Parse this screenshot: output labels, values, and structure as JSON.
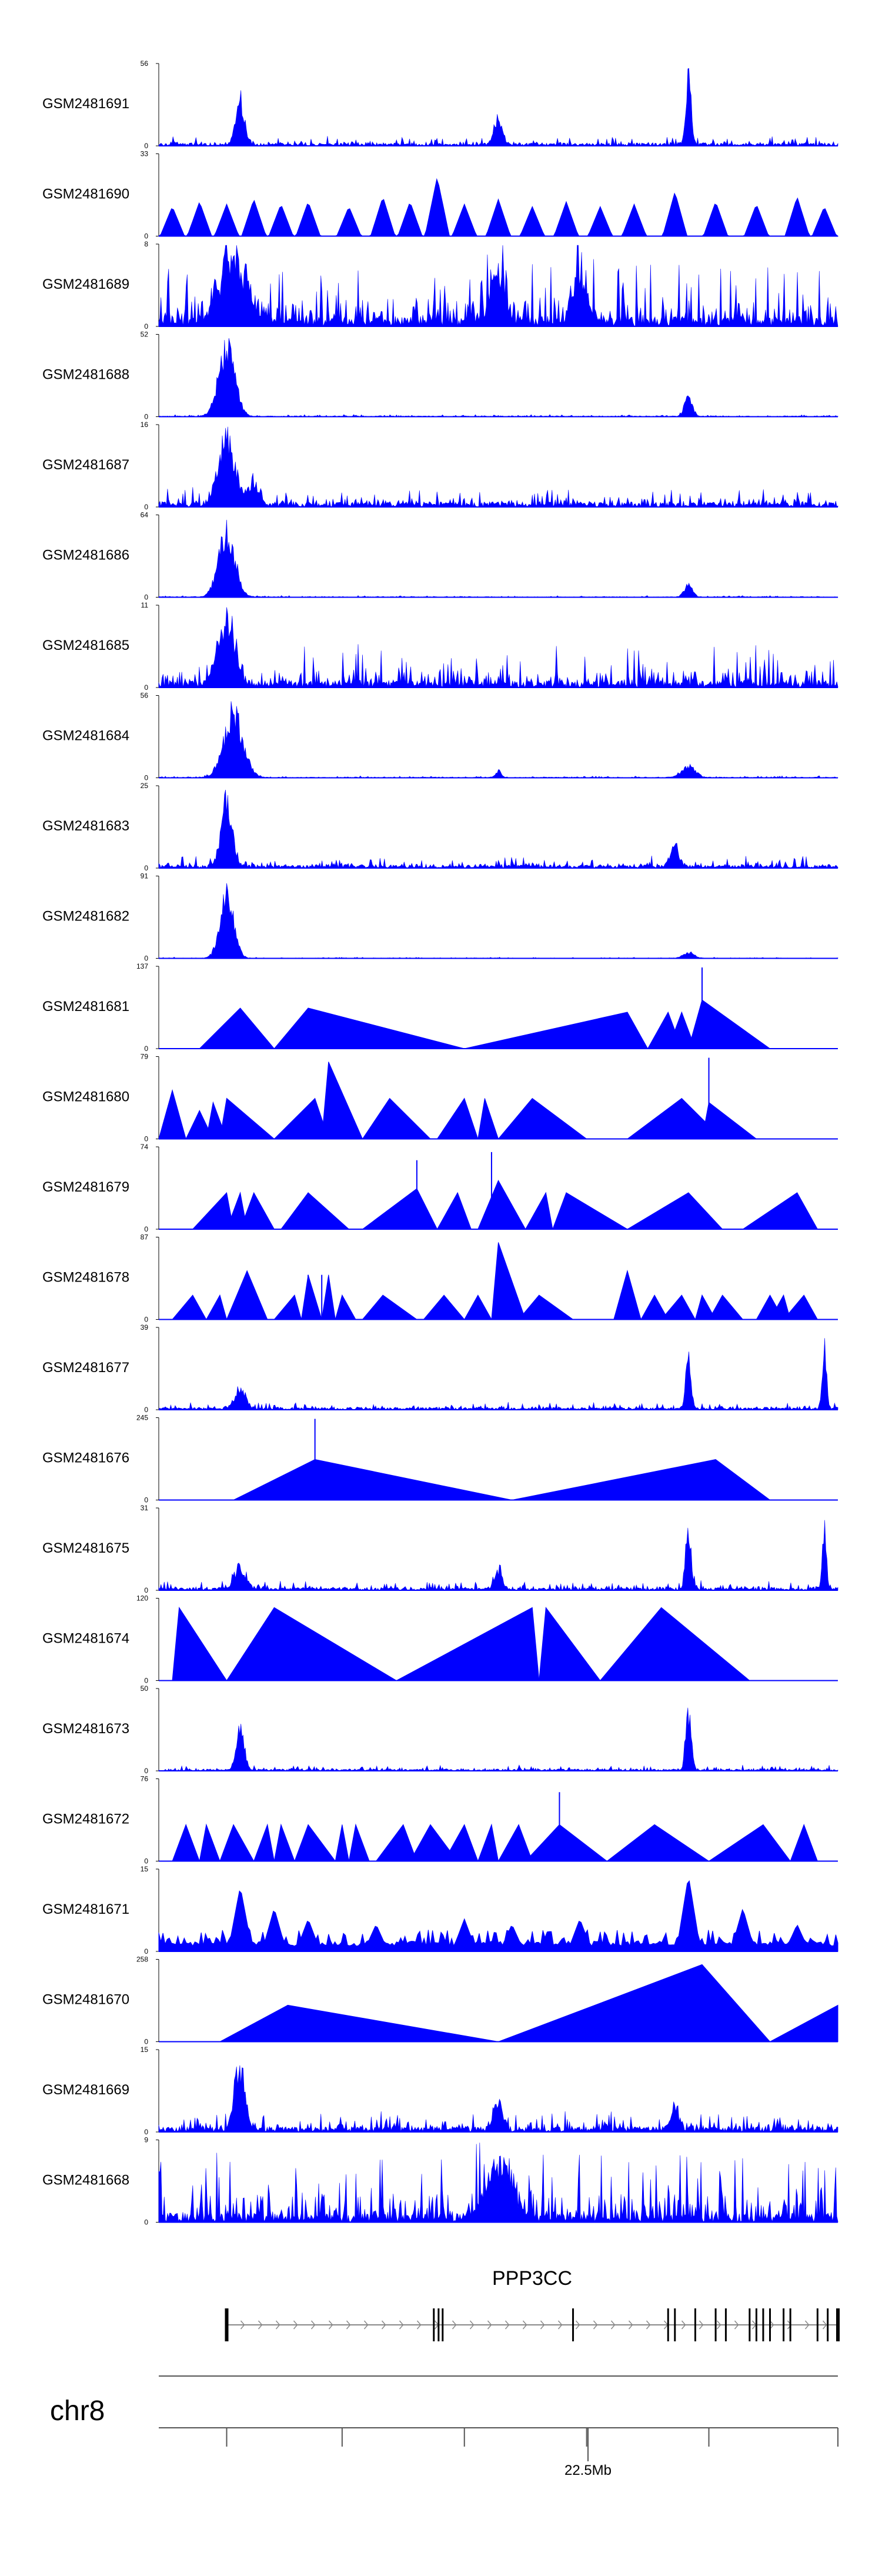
{
  "chart_data": {
    "type": "area",
    "title": "",
    "fill_color": "#0000ff",
    "x_range_mb": [
      22.11,
      22.67
    ],
    "tracks": [
      {
        "name": "GSM2481691",
        "ymax": 56,
        "style": "dense",
        "baseline": 2,
        "noise": 5,
        "peaks": [
          [
            0.12,
            40,
            0.006
          ],
          [
            0.5,
            22,
            0.006
          ],
          [
            0.78,
            55,
            0.004
          ]
        ]
      },
      {
        "name": "GSM2481690",
        "ymax": 33,
        "style": "spiky",
        "baseline": 0,
        "noise": 0,
        "peaks": [
          [
            0.02,
            12
          ],
          [
            0.06,
            14
          ],
          [
            0.1,
            13
          ],
          [
            0.14,
            15
          ],
          [
            0.18,
            13
          ],
          [
            0.22,
            14
          ],
          [
            0.28,
            12
          ],
          [
            0.33,
            16
          ],
          [
            0.37,
            14
          ],
          [
            0.41,
            24
          ],
          [
            0.45,
            13
          ],
          [
            0.5,
            15
          ],
          [
            0.55,
            12
          ],
          [
            0.6,
            14
          ],
          [
            0.65,
            12
          ],
          [
            0.7,
            13
          ],
          [
            0.76,
            18
          ],
          [
            0.82,
            14
          ],
          [
            0.88,
            13
          ],
          [
            0.94,
            16
          ],
          [
            0.98,
            12
          ]
        ]
      },
      {
        "name": "GSM2481689",
        "ymax": 8,
        "style": "dense",
        "baseline": 1,
        "noise": 6,
        "peaks": [
          [
            0.11,
            7,
            0.02
          ],
          [
            0.5,
            6,
            0.01
          ],
          [
            0.62,
            5,
            0.01
          ]
        ]
      },
      {
        "name": "GSM2481688",
        "ymax": 52,
        "style": "dense",
        "baseline": 0.5,
        "noise": 1,
        "peaks": [
          [
            0.1,
            52,
            0.012
          ],
          [
            0.78,
            14,
            0.006
          ]
        ]
      },
      {
        "name": "GSM2481687",
        "ymax": 16,
        "style": "dense",
        "baseline": 1,
        "noise": 3,
        "peaks": [
          [
            0.1,
            16,
            0.012
          ],
          [
            0.14,
            5,
            0.008
          ]
        ]
      },
      {
        "name": "GSM2481686",
        "ymax": 64,
        "style": "dense",
        "baseline": 0.5,
        "noise": 1,
        "peaks": [
          [
            0.1,
            64,
            0.012
          ],
          [
            0.78,
            12,
            0.006
          ]
        ]
      },
      {
        "name": "GSM2481685",
        "ymax": 11,
        "style": "dense",
        "baseline": 1,
        "noise": 5,
        "peaks": [
          [
            0.1,
            11,
            0.012
          ]
        ]
      },
      {
        "name": "GSM2481684",
        "ymax": 56,
        "style": "dense",
        "baseline": 0.5,
        "noise": 1,
        "peaks": [
          [
            0.11,
            56,
            0.014
          ],
          [
            0.5,
            6,
            0.004
          ],
          [
            0.78,
            10,
            0.01
          ]
        ]
      },
      {
        "name": "GSM2481683",
        "ymax": 25,
        "style": "dense",
        "baseline": 1,
        "noise": 3,
        "peaks": [
          [
            0.1,
            25,
            0.008
          ],
          [
            0.76,
            8,
            0.006
          ]
        ]
      },
      {
        "name": "GSM2481682",
        "ymax": 91,
        "style": "dense",
        "baseline": 0.5,
        "noise": 1,
        "peaks": [
          [
            0.1,
            91,
            0.01
          ],
          [
            0.78,
            8,
            0.008
          ]
        ]
      },
      {
        "name": "GSM2481681",
        "ymax": 137,
        "style": "triangles",
        "baseline": 0,
        "noise": 0,
        "peaks": [
          [
            0.06,
            0.12,
            0.17,
            0.5
          ],
          [
            0.17,
            0.22,
            0.45,
            0.5
          ],
          [
            0.45,
            0.69,
            0.72,
            0.45
          ],
          [
            0.72,
            0.75,
            0.77,
            0.45
          ],
          [
            0.75,
            0.77,
            0.79,
            0.45
          ],
          [
            0.78,
            0.8,
            0.9,
            0.6
          ]
        ],
        "spikes": [
          [
            0.8,
            1.0
          ]
        ]
      },
      {
        "name": "GSM2481680",
        "ymax": 79,
        "style": "triangles",
        "baseline": 0,
        "noise": 0,
        "peaks": [
          [
            0.0,
            0.02,
            0.04,
            0.6
          ],
          [
            0.04,
            0.06,
            0.08,
            0.35
          ],
          [
            0.07,
            0.08,
            0.1,
            0.45
          ],
          [
            0.09,
            0.1,
            0.17,
            0.5
          ],
          [
            0.17,
            0.23,
            0.25,
            0.5
          ],
          [
            0.24,
            0.25,
            0.3,
            0.95
          ],
          [
            0.3,
            0.34,
            0.4,
            0.5
          ],
          [
            0.41,
            0.45,
            0.47,
            0.5
          ],
          [
            0.47,
            0.48,
            0.5,
            0.5
          ],
          [
            0.5,
            0.55,
            0.63,
            0.5
          ],
          [
            0.69,
            0.77,
            0.83,
            0.5
          ],
          [
            0.8,
            0.81,
            0.88,
            0.45
          ]
        ],
        "spikes": [
          [
            0.81,
            1.0
          ]
        ]
      },
      {
        "name": "GSM2481679",
        "ymax": 74,
        "style": "triangles",
        "baseline": 0,
        "noise": 0,
        "peaks": [
          [
            0.05,
            0.1,
            0.11,
            0.45
          ],
          [
            0.1,
            0.12,
            0.13,
            0.45
          ],
          [
            0.12,
            0.14,
            0.17,
            0.45
          ],
          [
            0.18,
            0.22,
            0.28,
            0.45
          ],
          [
            0.3,
            0.38,
            0.41,
            0.5
          ],
          [
            0.41,
            0.44,
            0.46,
            0.45
          ],
          [
            0.47,
            0.5,
            0.54,
            0.6
          ],
          [
            0.54,
            0.57,
            0.58,
            0.45
          ],
          [
            0.58,
            0.6,
            0.69,
            0.45
          ],
          [
            0.69,
            0.78,
            0.83,
            0.45
          ],
          [
            0.86,
            0.94,
            0.97,
            0.45
          ]
        ],
        "spikes": [
          [
            0.38,
            0.85
          ],
          [
            0.49,
            0.95
          ]
        ]
      },
      {
        "name": "GSM2481678",
        "ymax": 87,
        "style": "triangles",
        "baseline": 0,
        "noise": 0,
        "peaks": [
          [
            0.02,
            0.05,
            0.07,
            0.3
          ],
          [
            0.07,
            0.09,
            0.1,
            0.3
          ],
          [
            0.1,
            0.13,
            0.16,
            0.6
          ],
          [
            0.17,
            0.2,
            0.21,
            0.3
          ],
          [
            0.21,
            0.22,
            0.24,
            0.55
          ],
          [
            0.24,
            0.25,
            0.26,
            0.55
          ],
          [
            0.26,
            0.27,
            0.29,
            0.3
          ],
          [
            0.3,
            0.33,
            0.38,
            0.3
          ],
          [
            0.39,
            0.42,
            0.45,
            0.3
          ],
          [
            0.45,
            0.47,
            0.49,
            0.3
          ],
          [
            0.49,
            0.5,
            0.54,
            0.95
          ],
          [
            0.53,
            0.56,
            0.61,
            0.3
          ],
          [
            0.67,
            0.69,
            0.71,
            0.6
          ],
          [
            0.71,
            0.73,
            0.75,
            0.3
          ],
          [
            0.74,
            0.77,
            0.79,
            0.3
          ],
          [
            0.79,
            0.8,
            0.82,
            0.3
          ],
          [
            0.81,
            0.83,
            0.86,
            0.3
          ],
          [
            0.88,
            0.9,
            0.92,
            0.3
          ],
          [
            0.9,
            0.92,
            0.93,
            0.3
          ],
          [
            0.92,
            0.95,
            0.97,
            0.3
          ]
        ],
        "spikes": [
          [
            0.22,
            0.55
          ],
          [
            0.24,
            0.55
          ]
        ]
      },
      {
        "name": "GSM2481677",
        "ymax": 39,
        "style": "dense",
        "baseline": 1,
        "noise": 3,
        "peaks": [
          [
            0.12,
            12,
            0.008
          ],
          [
            0.78,
            30,
            0.004
          ],
          [
            0.98,
            38,
            0.003
          ]
        ]
      },
      {
        "name": "GSM2481676",
        "ymax": 245,
        "style": "triangles",
        "baseline": 0,
        "noise": 0,
        "peaks": [
          [
            0.11,
            0.23,
            0.52,
            0.5
          ],
          [
            0.52,
            0.82,
            0.9,
            0.5
          ]
        ],
        "spikes": [
          [
            0.23,
            1.0
          ]
        ]
      },
      {
        "name": "GSM2481675",
        "ymax": 31,
        "style": "dense",
        "baseline": 1,
        "noise": 3,
        "peaks": [
          [
            0.12,
            10,
            0.008
          ],
          [
            0.5,
            8,
            0.006
          ],
          [
            0.78,
            28,
            0.004
          ],
          [
            0.98,
            31,
            0.003
          ]
        ]
      },
      {
        "name": "GSM2481674",
        "ymax": 120,
        "style": "triangles",
        "baseline": 0,
        "noise": 0,
        "peaks": [
          [
            0.02,
            0.03,
            0.1,
            0.9
          ],
          [
            0.1,
            0.17,
            0.35,
            0.9
          ],
          [
            0.35,
            0.55,
            0.56,
            0.9
          ],
          [
            0.56,
            0.57,
            0.65,
            0.9
          ],
          [
            0.65,
            0.74,
            0.87,
            0.9
          ]
        ]
      },
      {
        "name": "GSM2481673",
        "ymax": 50,
        "style": "dense",
        "baseline": 1,
        "noise": 3,
        "peaks": [
          [
            0.12,
            30,
            0.006
          ],
          [
            0.78,
            45,
            0.004
          ]
        ]
      },
      {
        "name": "GSM2481672",
        "ymax": 76,
        "style": "triangles",
        "baseline": 0,
        "noise": 0,
        "peaks": [
          [
            0.02,
            0.04,
            0.06,
            0.45
          ],
          [
            0.06,
            0.07,
            0.09,
            0.45
          ],
          [
            0.09,
            0.11,
            0.14,
            0.45
          ],
          [
            0.14,
            0.16,
            0.17,
            0.45
          ],
          [
            0.17,
            0.18,
            0.2,
            0.45
          ],
          [
            0.2,
            0.22,
            0.26,
            0.45
          ],
          [
            0.26,
            0.27,
            0.28,
            0.45
          ],
          [
            0.28,
            0.29,
            0.31,
            0.45
          ],
          [
            0.32,
            0.36,
            0.38,
            0.45
          ],
          [
            0.37,
            0.4,
            0.44,
            0.45
          ],
          [
            0.42,
            0.45,
            0.47,
            0.45
          ],
          [
            0.47,
            0.49,
            0.5,
            0.45
          ],
          [
            0.5,
            0.53,
            0.55,
            0.45
          ],
          [
            0.54,
            0.59,
            0.66,
            0.45
          ],
          [
            0.66,
            0.73,
            0.81,
            0.45
          ],
          [
            0.81,
            0.89,
            0.93,
            0.45
          ],
          [
            0.93,
            0.95,
            0.97,
            0.45
          ]
        ],
        "spikes": [
          [
            0.59,
            0.85
          ]
        ]
      },
      {
        "name": "GSM2481671",
        "ymax": 15,
        "style": "spiky",
        "baseline": 1,
        "noise": 3,
        "peaks": [
          [
            0.12,
            12
          ],
          [
            0.17,
            8
          ],
          [
            0.22,
            6
          ],
          [
            0.32,
            5
          ],
          [
            0.45,
            6
          ],
          [
            0.52,
            5
          ],
          [
            0.62,
            6
          ],
          [
            0.78,
            14
          ],
          [
            0.86,
            8
          ],
          [
            0.94,
            5
          ]
        ]
      },
      {
        "name": "GSM2481670",
        "ymax": 258,
        "style": "triangles",
        "baseline": 0,
        "noise": 0,
        "peaks": [
          [
            0.09,
            0.19,
            0.5,
            0.45
          ],
          [
            0.5,
            0.8,
            0.9,
            0.95
          ],
          [
            0.9,
            1.0,
            1.0,
            0.45
          ]
        ]
      },
      {
        "name": "GSM2481669",
        "ymax": 15,
        "style": "dense",
        "baseline": 1,
        "noise": 3,
        "peaks": [
          [
            0.12,
            14,
            0.008
          ],
          [
            0.5,
            7,
            0.006
          ],
          [
            0.76,
            5,
            0.006
          ]
        ]
      },
      {
        "name": "GSM2481668",
        "ymax": 9,
        "style": "dense",
        "baseline": 1,
        "noise": 7,
        "peaks": [
          [
            0.5,
            7,
            0.02
          ]
        ]
      }
    ],
    "gene": {
      "name": "PPP3CC",
      "exons": [
        0.1,
        0.405,
        0.412,
        0.418,
        0.61,
        0.75,
        0.76,
        0.79,
        0.82,
        0.835,
        0.87,
        0.88,
        0.89,
        0.9,
        0.92,
        0.93,
        0.97,
        0.985,
        1.0
      ]
    },
    "chromosome": "chr8",
    "scale_label": "22.5Mb",
    "scale_ticks": [
      0.1,
      0.27,
      0.45,
      0.63,
      0.81,
      1.0
    ]
  }
}
